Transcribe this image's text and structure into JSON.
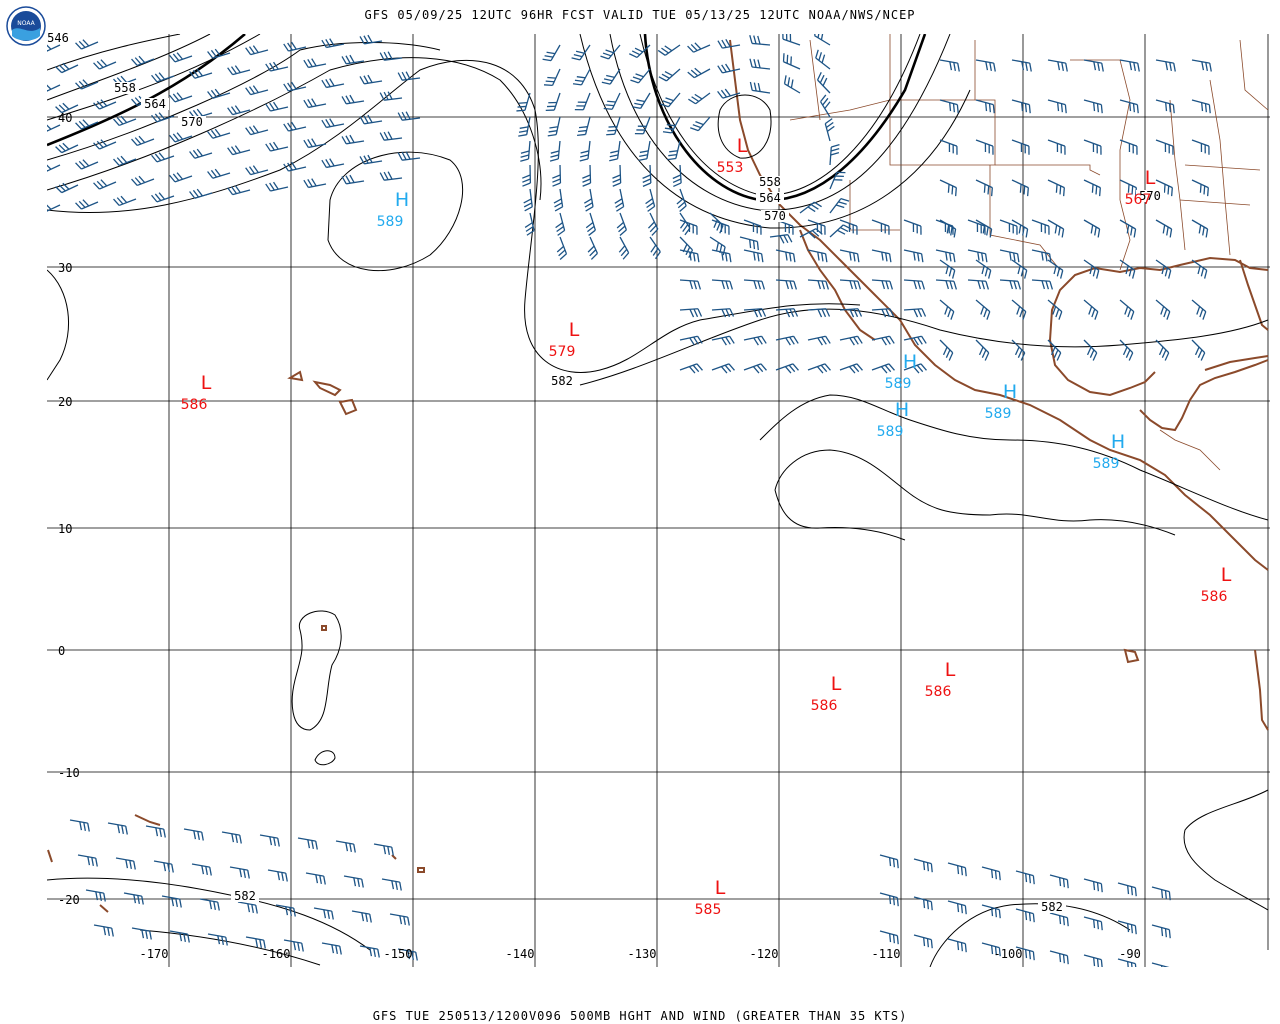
{
  "header": {
    "title": "GFS 05/09/25 12UTC 96HR FCST VALID TUE 05/13/25 12UTC NOAA/NWS/NCEP"
  },
  "footer": {
    "title": "GFS TUE 250513/1200V096 500MB HGHT AND WIND (GREATER THAN 35 KTS)"
  },
  "logo": {
    "text": "NOAA",
    "icon": "noaa-logo-icon"
  },
  "axes": {
    "latitudes": [
      {
        "label": "40"
      },
      {
        "label": "30"
      },
      {
        "label": "20"
      },
      {
        "label": "10"
      },
      {
        "label": "0"
      },
      {
        "label": "-10"
      },
      {
        "label": "-20"
      }
    ],
    "longitudes": [
      {
        "label": "-170"
      },
      {
        "label": "-160"
      },
      {
        "label": "-150"
      },
      {
        "label": "-140"
      },
      {
        "label": "-130"
      },
      {
        "label": "-120"
      },
      {
        "label": "-110"
      },
      {
        "label": "-100"
      },
      {
        "label": "-90"
      }
    ]
  },
  "colors": {
    "high": "#22aaee",
    "low": "#ee1111",
    "barb": "#1d5486",
    "coast": "#8b4a2b",
    "contour": "#000000",
    "grid": "#000000"
  },
  "contour_labels": [
    {
      "text": "546"
    },
    {
      "text": "558"
    },
    {
      "text": "564"
    },
    {
      "text": "570"
    },
    {
      "text": "558"
    },
    {
      "text": "564"
    },
    {
      "text": "570"
    },
    {
      "text": "570"
    },
    {
      "text": "582"
    },
    {
      "text": "582"
    },
    {
      "text": "582"
    }
  ],
  "highs": [
    {
      "symbol": "H",
      "value": "589"
    },
    {
      "symbol": "H",
      "value": "589"
    },
    {
      "symbol": "H",
      "value": "589"
    },
    {
      "symbol": "H",
      "value": "589"
    },
    {
      "symbol": "H",
      "value": "589"
    }
  ],
  "lows": [
    {
      "symbol": "L",
      "value": "553"
    },
    {
      "symbol": "L",
      "value": "567"
    },
    {
      "symbol": "L",
      "value": "579"
    },
    {
      "symbol": "L",
      "value": "586"
    },
    {
      "symbol": "L",
      "value": "586"
    },
    {
      "symbol": "L",
      "value": "586"
    },
    {
      "symbol": "L",
      "value": "586"
    },
    {
      "symbol": "L",
      "value": "585"
    }
  ]
}
